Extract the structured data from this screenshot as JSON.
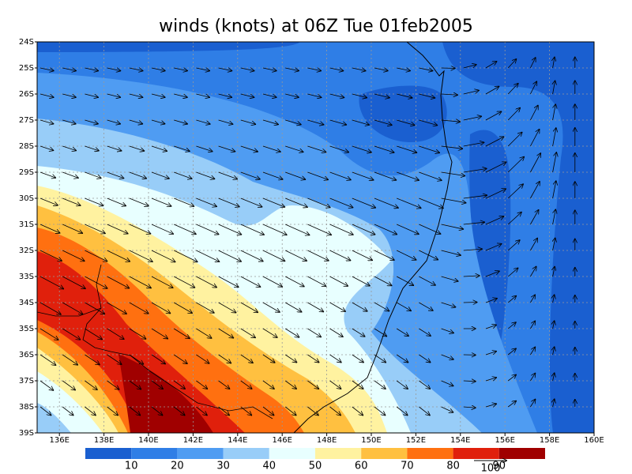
{
  "title": "winds (knots) at 06Z Tue 01feb2005",
  "map": {
    "lon_labels": [
      "136E",
      "138E",
      "140E",
      "142E",
      "144E",
      "146E",
      "148E",
      "150E",
      "152E",
      "154E",
      "156E",
      "158E",
      "160E"
    ],
    "lat_labels": [
      "24S",
      "25S",
      "26S",
      "27S",
      "28S",
      "29S",
      "30S",
      "31S",
      "32S",
      "33S",
      "34S",
      "35S",
      "36S",
      "37S",
      "38S",
      "39S"
    ]
  },
  "colorbar": {
    "levels": [
      10,
      20,
      30,
      40,
      50,
      60,
      70,
      80,
      90
    ],
    "colors": [
      "#1a5fd0",
      "#2f7ee6",
      "#4f9cf2",
      "#98cdf8",
      "#e8ffff",
      "#fff2a0",
      "#ffc040",
      "#ff7010",
      "#e0200c",
      "#a00000"
    ]
  },
  "reference_vector": {
    "label": "100"
  }
}
